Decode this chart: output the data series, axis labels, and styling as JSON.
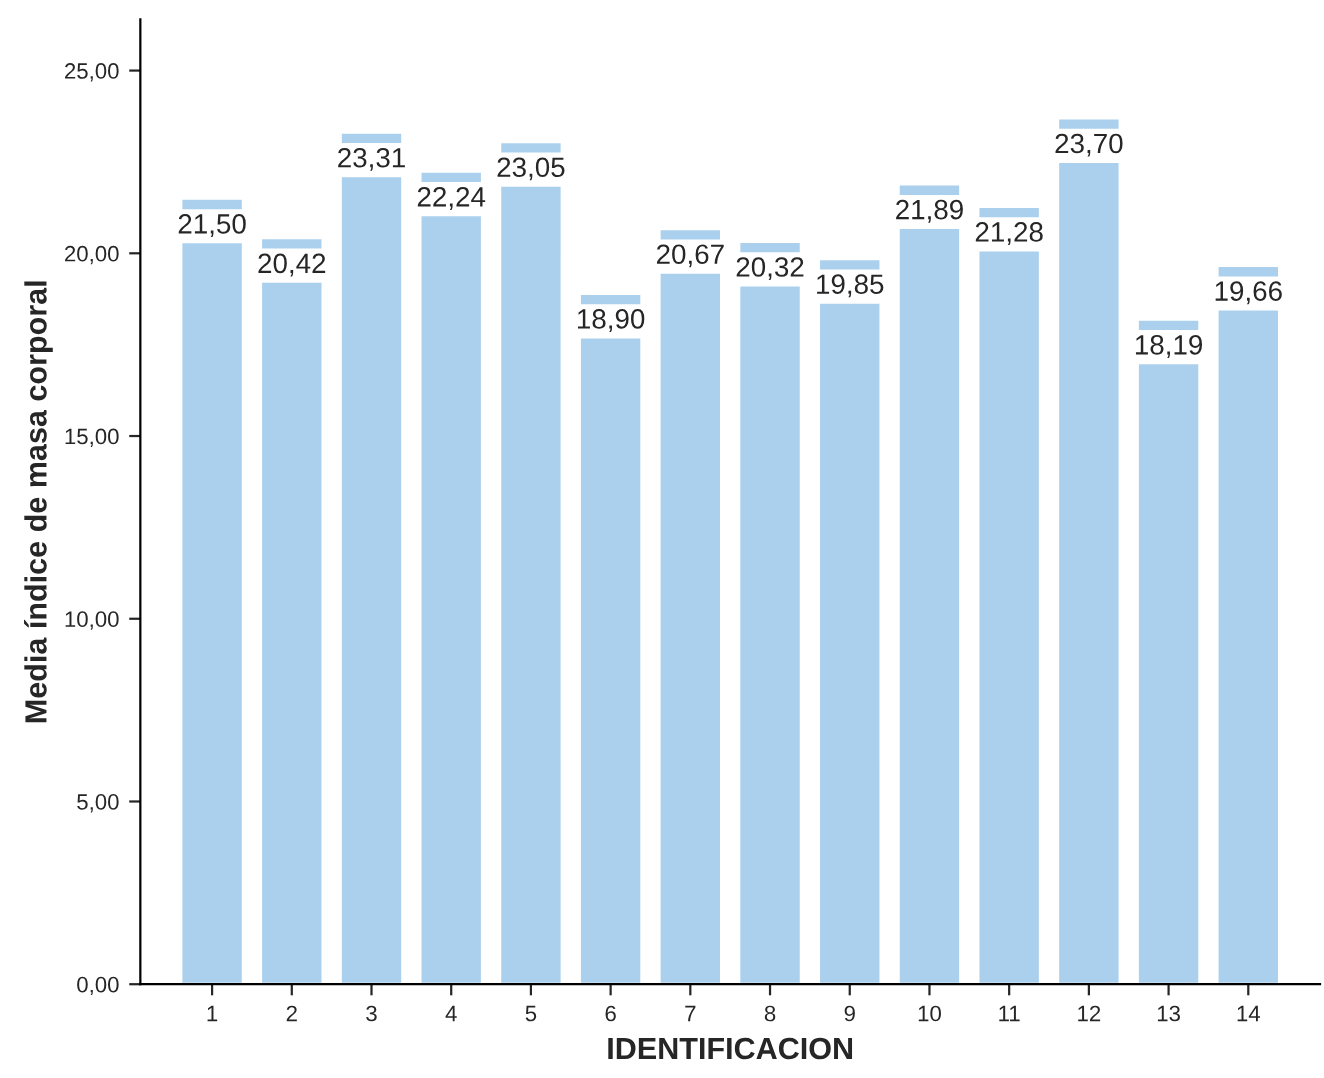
{
  "chart_data": {
    "type": "bar",
    "xlabel": "IDENTIFICACION",
    "ylabel": "Media índice de masa corporal",
    "categories": [
      "1",
      "2",
      "3",
      "4",
      "5",
      "6",
      "7",
      "8",
      "9",
      "10",
      "11",
      "12",
      "13",
      "14"
    ],
    "values": [
      21.5,
      20.42,
      23.31,
      22.24,
      23.05,
      18.9,
      20.67,
      20.32,
      19.85,
      21.89,
      21.28,
      23.7,
      18.19,
      19.66
    ],
    "value_labels": [
      "21,50",
      "20,42",
      "23,31",
      "22,24",
      "23,05",
      "18,90",
      "20,67",
      "20,32",
      "19,85",
      "21,89",
      "21,28",
      "23,70",
      "18,19",
      "19,66"
    ],
    "color": "#abd0ee",
    "ylim": [
      0,
      26.4
    ],
    "yticks": [
      {
        "value": 0,
        "label": "0,00"
      },
      {
        "value": 5,
        "label": "5,00"
      },
      {
        "value": 10,
        "label": "10,00"
      },
      {
        "value": 15,
        "label": "15,00"
      },
      {
        "value": 20,
        "label": "20,00"
      },
      {
        "value": 25,
        "label": "25,00"
      }
    ],
    "grid": false
  }
}
